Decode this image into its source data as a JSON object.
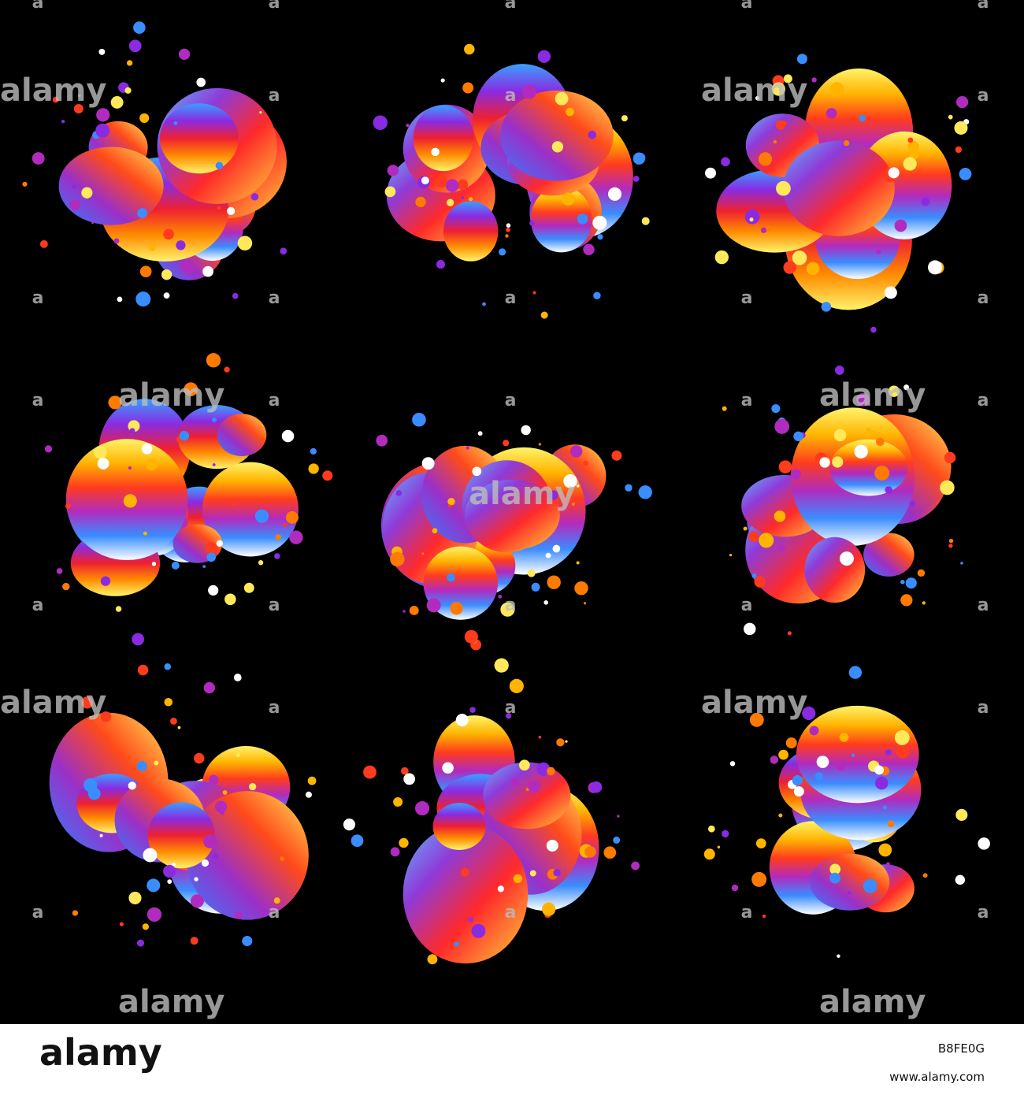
{
  "watermarks": {
    "wordmark": "alamy",
    "letter": "a"
  },
  "footer": {
    "logo": "alamy",
    "image_id": "B8FE0G",
    "url": "www.alamy.com"
  }
}
